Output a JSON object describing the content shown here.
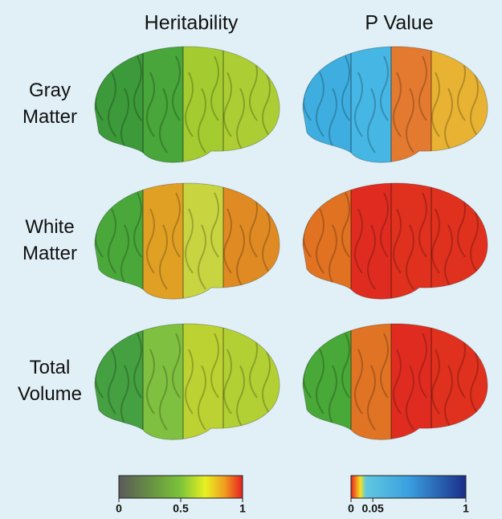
{
  "columns": [
    "Heritability",
    "P Value"
  ],
  "rows": [
    [
      "Gray",
      "Matter"
    ],
    [
      "White",
      "Matter"
    ],
    [
      "Total",
      "Volume"
    ]
  ],
  "colorbars": [
    {
      "ticks": [
        0,
        0.5,
        1
      ]
    },
    {
      "ticks": [
        0,
        0.05,
        1
      ]
    }
  ]
}
